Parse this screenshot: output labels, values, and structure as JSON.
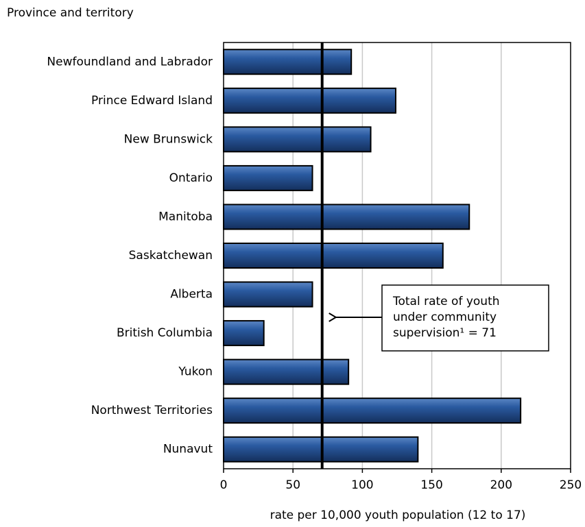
{
  "chart_data": {
    "type": "hbar",
    "y_axis_label": "Province and territory",
    "x_axis_label": "rate per 10,000 youth population (12 to 17)",
    "categories": [
      "Newfoundland and Labrador",
      "Prince Edward Island",
      "New Brunswick",
      "Ontario",
      "Manitoba",
      "Saskatchewan",
      "Alberta",
      "British Columbia",
      "Yukon",
      "Northwest Territories",
      "Nunavut"
    ],
    "values": [
      92,
      124,
      106,
      64,
      177,
      158,
      64,
      29,
      90,
      214,
      140
    ],
    "color": "#1f4e8c",
    "xlim": [
      0,
      250
    ],
    "xticks": [
      0,
      50,
      100,
      150,
      200,
      250
    ],
    "grid": true,
    "reference_line": 71,
    "annotation": [
      "Total rate of youth",
      "under community",
      "supervision¹ = 71"
    ]
  }
}
